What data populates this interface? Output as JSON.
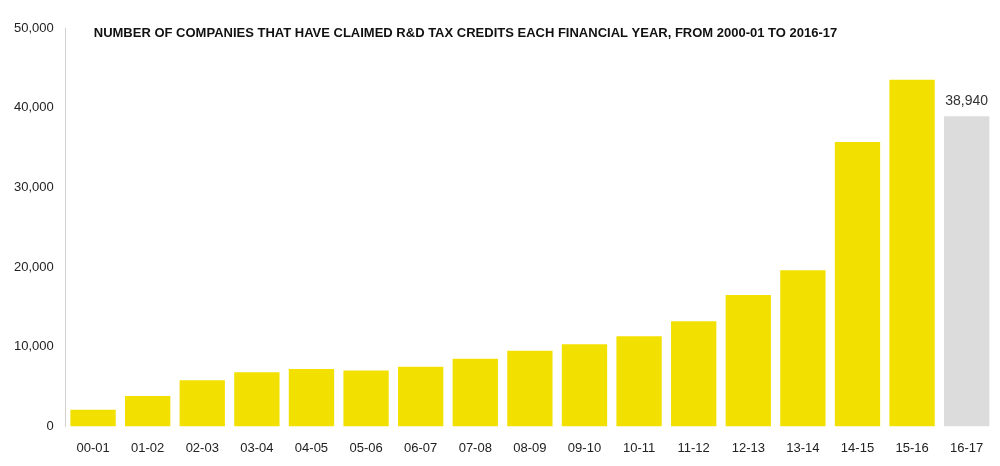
{
  "chart_data": {
    "type": "bar",
    "title": "NUMBER OF COMPANIES THAT HAVE CLAIMED R&D TAX CREDITS EACH FINANCIAL YEAR, FROM 2000-01 TO 2016-17",
    "categories": [
      "00-01",
      "01-02",
      "02-03",
      "03-04",
      "04-05",
      "05-06",
      "06-07",
      "07-08",
      "08-09",
      "09-10",
      "10-11",
      "11-12",
      "12-13",
      "13-14",
      "14-15",
      "15-16",
      "16-17"
    ],
    "values": [
      2100,
      3800,
      5800,
      6800,
      7200,
      7000,
      7500,
      8500,
      9500,
      10300,
      11300,
      13200,
      16500,
      19600,
      35700,
      43500,
      38940
    ],
    "value_labels": [
      null,
      null,
      null,
      null,
      null,
      null,
      null,
      null,
      null,
      null,
      null,
      null,
      null,
      null,
      null,
      null,
      "38,940"
    ],
    "colors": [
      "#f2e100",
      "#f2e100",
      "#f2e100",
      "#f2e100",
      "#f2e100",
      "#f2e100",
      "#f2e100",
      "#f2e100",
      "#f2e100",
      "#f2e100",
      "#f2e100",
      "#f2e100",
      "#f2e100",
      "#f2e100",
      "#f2e100",
      "#f2e100",
      "#dcdcdc"
    ],
    "ylim": [
      0,
      50000
    ],
    "yticks": [
      0,
      {
        "value": 10000,
        "label": "10,000"
      },
      {
        "value": 20000,
        "label": "20,000"
      },
      {
        "value": 30000,
        "label": "30,000"
      },
      {
        "value": 40000,
        "label": "40,000"
      },
      {
        "value": 50000,
        "label": "50,000"
      }
    ],
    "grid": false
  }
}
